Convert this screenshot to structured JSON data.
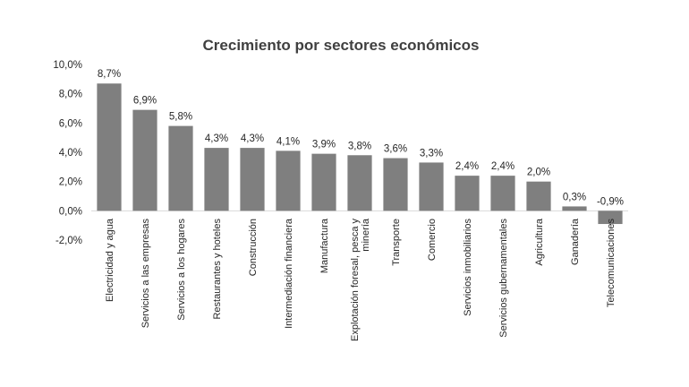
{
  "chart_data": {
    "type": "bar",
    "title": "Crecimiento por sectores económicos",
    "xlabel": "",
    "ylabel": "",
    "ylim": [
      -2.0,
      10.0
    ],
    "yticks": [
      "-2,0%",
      "0,0%",
      "2,0%",
      "4,0%",
      "6,0%",
      "8,0%",
      "10,0%"
    ],
    "ytick_values": [
      -2,
      0,
      2,
      4,
      6,
      8,
      10
    ],
    "grid": false,
    "bar_color": "#7f7f7f",
    "categories": [
      [
        "Electricidad y agua"
      ],
      [
        "Servicios a las empresas"
      ],
      [
        "Servicios a los hogares"
      ],
      [
        "Restaurantes y hoteles"
      ],
      [
        "Construcción"
      ],
      [
        "Intermediación financiera"
      ],
      [
        "Manufactura"
      ],
      [
        "Explotación foresal, pesca y",
        "minería"
      ],
      [
        "Transporte"
      ],
      [
        "Comercio"
      ],
      [
        "Servicios inmobiliarios"
      ],
      [
        "Servicios gubernamentales"
      ],
      [
        "Agricultura"
      ],
      [
        "Ganadería"
      ],
      [
        "Telecomunicaciones"
      ]
    ],
    "values": [
      8.7,
      6.9,
      5.8,
      4.3,
      4.3,
      4.1,
      3.9,
      3.8,
      3.6,
      3.3,
      2.4,
      2.4,
      2.0,
      0.3,
      -0.9
    ],
    "data_labels": [
      "8,7%",
      "6,9%",
      "5,8%",
      "4,3%",
      "4,3%",
      "4,1%",
      "3,9%",
      "3,8%",
      "3,6%",
      "3,3%",
      "2,4%",
      "2,4%",
      "2,0%",
      "0,3%",
      "-0,9%"
    ]
  }
}
